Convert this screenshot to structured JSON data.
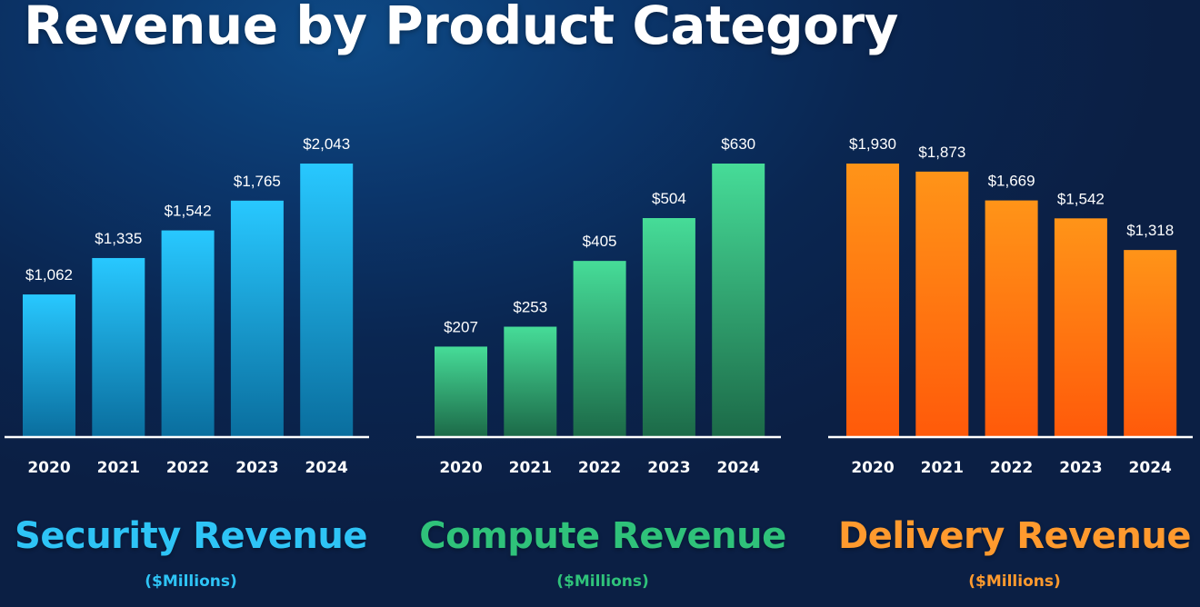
{
  "title": "Revenue by Product Category",
  "chart_data": [
    {
      "type": "bar",
      "title": "Security Revenue",
      "subtitle": "($Millions)",
      "categories": [
        "2020",
        "2021",
        "2022",
        "2023",
        "2024"
      ],
      "values": [
        1062,
        1335,
        1542,
        1765,
        2043
      ],
      "value_labels": [
        "$1,062",
        "$1,335",
        "$1,542",
        "$1,765",
        "$2,043"
      ],
      "ylim": [
        0,
        2043
      ],
      "color_top": "#28c8ff",
      "color_bottom": "#0a6e9e",
      "title_color": "#2ec4f6"
    },
    {
      "type": "bar",
      "title": "Compute Revenue",
      "subtitle": "($Millions)",
      "categories": [
        "2020",
        "2021",
        "2022",
        "2023",
        "2024"
      ],
      "values": [
        207,
        253,
        405,
        504,
        630
      ],
      "value_labels": [
        "$207",
        "$253",
        "$405",
        "$504",
        "$630"
      ],
      "ylim": [
        0,
        630
      ],
      "color_top": "#46dc98",
      "color_bottom": "#1c6a48",
      "title_color": "#2fc27a"
    },
    {
      "type": "bar",
      "title": "Delivery Revenue",
      "subtitle": "($Millions)",
      "categories": [
        "2020",
        "2021",
        "2022",
        "2023",
        "2024"
      ],
      "values": [
        1930,
        1873,
        1669,
        1542,
        1318
      ],
      "value_labels": [
        "$1,930",
        "$1,873",
        "$1,669",
        "$1,542",
        "$1,318"
      ],
      "ylim": [
        0,
        1930
      ],
      "color_top": "#ff9418",
      "color_bottom": "#ff5a0a",
      "title_color": "#ff9a2e"
    }
  ]
}
